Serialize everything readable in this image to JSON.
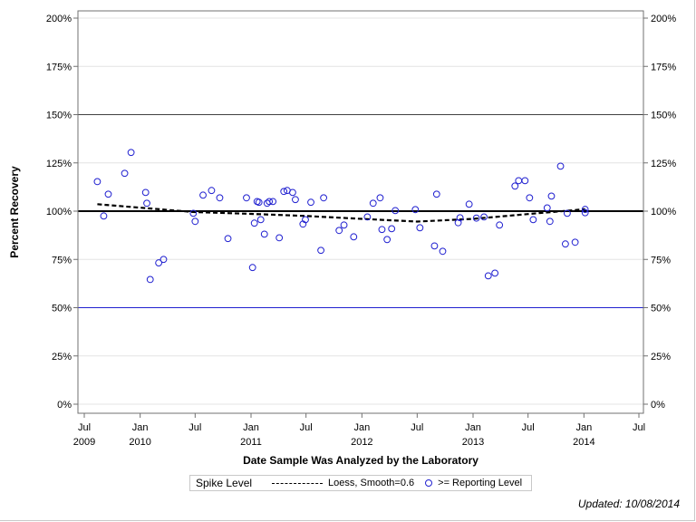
{
  "chart_data": {
    "type": "scatter",
    "xlabel": "Date Sample Was Analyzed by the Laboratory",
    "ylabel": "Percent Recovery",
    "ylim": [
      0,
      200
    ],
    "xlim": [
      "2009-06-20",
      "2014-07-20"
    ],
    "y_ticks": [
      "0%",
      "25%",
      "50%",
      "75%",
      "100%",
      "125%",
      "150%",
      "175%",
      "200%"
    ],
    "y_tick_values": [
      0,
      25,
      50,
      75,
      100,
      125,
      150,
      175,
      200
    ],
    "x_ticks": [
      {
        "date": "2009-07-01",
        "label": "Jul",
        "year": "2009"
      },
      {
        "date": "2010-01-01",
        "label": "Jan",
        "year": "2010"
      },
      {
        "date": "2010-07-01",
        "label": "Jul",
        "year": ""
      },
      {
        "date": "2011-01-01",
        "label": "Jan",
        "year": "2011"
      },
      {
        "date": "2011-07-01",
        "label": "Jul",
        "year": ""
      },
      {
        "date": "2012-01-01",
        "label": "Jan",
        "year": "2012"
      },
      {
        "date": "2012-07-01",
        "label": "Jul",
        "year": ""
      },
      {
        "date": "2013-01-01",
        "label": "Jan",
        "year": "2013"
      },
      {
        "date": "2013-07-01",
        "label": "Jul",
        "year": ""
      },
      {
        "date": "2014-01-01",
        "label": "Jan",
        "year": "2014"
      },
      {
        "date": "2014-07-01",
        "label": "Jul",
        "year": ""
      }
    ],
    "grid": true,
    "reference_lines": [
      {
        "y": 150,
        "color": "#404040"
      },
      {
        "y": 100,
        "color": "#000000"
      },
      {
        "y": 50,
        "color": "#2020d0"
      }
    ],
    "series": [
      {
        "name": ">= Reporting Level",
        "type": "scatter",
        "color": "#2020d0",
        "points": [
          [
            "2009-08-13",
            115.3
          ],
          [
            "2009-09-03",
            97.5
          ],
          [
            "2009-09-18",
            108.8
          ],
          [
            "2009-11-11",
            119.6
          ],
          [
            "2009-12-02",
            130.4
          ],
          [
            "2010-01-19",
            109.7
          ],
          [
            "2010-01-23",
            104.1
          ],
          [
            "2010-02-03",
            64.6
          ],
          [
            "2010-03-03",
            73.2
          ],
          [
            "2010-03-19",
            75.0
          ],
          [
            "2010-06-25",
            98.9
          ],
          [
            "2010-07-01",
            94.7
          ],
          [
            "2010-07-27",
            108.3
          ],
          [
            "2010-08-24",
            110.7
          ],
          [
            "2010-09-20",
            106.9
          ],
          [
            "2010-10-17",
            85.8
          ],
          [
            "2010-12-17",
            106.9
          ],
          [
            "2011-01-06",
            70.8
          ],
          [
            "2011-01-12",
            93.8
          ],
          [
            "2011-01-21",
            105.0
          ],
          [
            "2011-01-27",
            104.6
          ],
          [
            "2011-02-02",
            95.6
          ],
          [
            "2011-02-14",
            88.1
          ],
          [
            "2011-02-23",
            104.1
          ],
          [
            "2011-03-02",
            105.0
          ],
          [
            "2011-03-14",
            105.0
          ],
          [
            "2011-04-04",
            86.2
          ],
          [
            "2011-04-19",
            110.2
          ],
          [
            "2011-04-30",
            110.7
          ],
          [
            "2011-05-18",
            109.7
          ],
          [
            "2011-05-27",
            106.0
          ],
          [
            "2011-06-21",
            93.3
          ],
          [
            "2011-06-29",
            95.6
          ],
          [
            "2011-07-17",
            104.6
          ],
          [
            "2011-08-19",
            79.7
          ],
          [
            "2011-08-28",
            106.9
          ],
          [
            "2011-10-18",
            90.0
          ],
          [
            "2011-11-03",
            92.8
          ],
          [
            "2011-12-05",
            86.7
          ],
          [
            "2012-01-19",
            97.0
          ],
          [
            "2012-02-07",
            104.1
          ],
          [
            "2012-03-01",
            106.9
          ],
          [
            "2012-03-07",
            90.5
          ],
          [
            "2012-03-24",
            85.3
          ],
          [
            "2012-04-08",
            90.9
          ],
          [
            "2012-04-20",
            100.3
          ],
          [
            "2012-06-25",
            100.8
          ],
          [
            "2012-07-10",
            91.4
          ],
          [
            "2012-08-27",
            82.0
          ],
          [
            "2012-09-03",
            108.8
          ],
          [
            "2012-09-23",
            79.2
          ],
          [
            "2012-11-13",
            94.0
          ],
          [
            "2012-11-19",
            96.6
          ],
          [
            "2012-12-19",
            103.6
          ],
          [
            "2013-01-12",
            96.4
          ],
          [
            "2013-02-06",
            97.0
          ],
          [
            "2013-02-20",
            66.5
          ],
          [
            "2013-03-14",
            67.9
          ],
          [
            "2013-03-29",
            92.8
          ],
          [
            "2013-05-19",
            113.0
          ],
          [
            "2013-05-31",
            115.8
          ],
          [
            "2013-06-21",
            115.8
          ],
          [
            "2013-07-06",
            106.9
          ],
          [
            "2013-07-18",
            95.6
          ],
          [
            "2013-09-02",
            101.7
          ],
          [
            "2013-09-11",
            94.7
          ],
          [
            "2013-09-16",
            107.8
          ],
          [
            "2013-10-16",
            123.3
          ],
          [
            "2013-11-01",
            83.0
          ],
          [
            "2013-11-07",
            98.9
          ],
          [
            "2013-12-03",
            83.9
          ],
          [
            "2014-01-05",
            100.9
          ],
          [
            "2014-01-05",
            99.2
          ]
        ]
      },
      {
        "name": "Loess, Smooth=0.6",
        "type": "line",
        "style": "dashed",
        "color": "#000000",
        "points": [
          [
            "2009-08-13",
            103.6
          ],
          [
            "2010-01-01",
            101.8
          ],
          [
            "2010-07-01",
            99.5
          ],
          [
            "2011-01-01",
            98.6
          ],
          [
            "2011-07-01",
            97.5
          ],
          [
            "2012-01-01",
            96.0
          ],
          [
            "2012-07-01",
            94.6
          ],
          [
            "2013-01-01",
            96.0
          ],
          [
            "2013-07-01",
            98.5
          ],
          [
            "2014-01-05",
            101.0
          ]
        ]
      }
    ],
    "legend": {
      "title": "Spike Level",
      "position": "bottom"
    }
  },
  "footer": {
    "updated": "Updated: 10/08/2014"
  }
}
